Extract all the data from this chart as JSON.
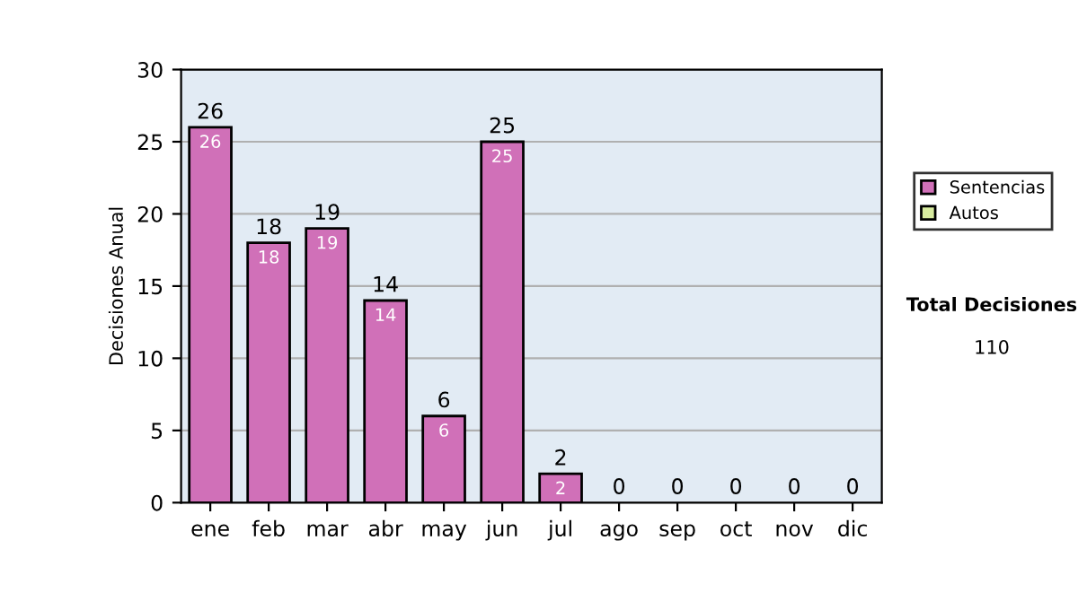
{
  "chart_data": {
    "type": "bar",
    "ylabel": "Decisiones Anual",
    "categories": [
      "ene",
      "feb",
      "mar",
      "abr",
      "may",
      "jun",
      "jul",
      "ago",
      "sep",
      "oct",
      "nov",
      "dic"
    ],
    "stacked": true,
    "series": [
      {
        "name": "Sentencias",
        "color": "#d070b8",
        "values": [
          26,
          18,
          19,
          14,
          6,
          25,
          2,
          0,
          0,
          0,
          0,
          0
        ],
        "value_labels": [
          "26",
          "18",
          "19",
          "14",
          "6",
          "25",
          "2",
          null,
          null,
          null,
          null,
          null
        ]
      },
      {
        "name": "Autos",
        "color": "#d8eca0",
        "values": [
          0,
          0,
          0,
          0,
          0,
          0,
          0,
          0,
          0,
          0,
          0,
          0
        ]
      }
    ],
    "totals": [
      "26",
      "18",
      "19",
      "14",
      "6",
      "25",
      "2",
      "0",
      "0",
      "0",
      "0",
      "0"
    ],
    "ylim": [
      0,
      30
    ],
    "yticks": [
      0,
      5,
      10,
      15,
      20,
      25,
      30
    ],
    "grid": "y",
    "legend": "right",
    "annotations": [
      "Total Decisiones",
      "110"
    ]
  }
}
